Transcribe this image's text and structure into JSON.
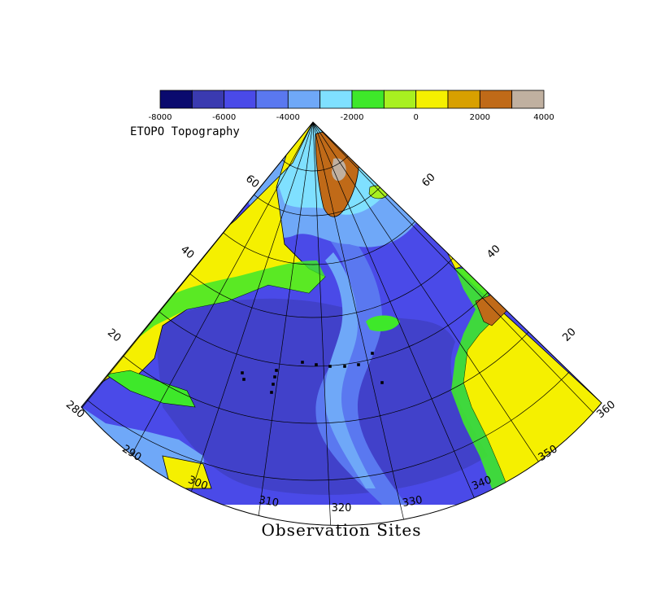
{
  "colorbar": {
    "title": "ETOPO Topography",
    "ticks": [
      "-8000",
      "-6000",
      "-4000",
      "-2000",
      "0",
      "2000",
      "4000"
    ],
    "colors": [
      "#0a0a6e",
      "#3a3ab0",
      "#4a4ae8",
      "#5a78f0",
      "#6fa8f8",
      "#7fe0ff",
      "#3ee82a",
      "#a8f020",
      "#f5f000",
      "#d8a000",
      "#c06a18",
      "#c0b0a0"
    ]
  },
  "map": {
    "title": "Observation Sites",
    "lon_labels": [
      "280",
      "290",
      "300",
      "310",
      "320",
      "330",
      "340",
      "350",
      "360"
    ],
    "lat_labels_left": [
      "20",
      "40",
      "60"
    ],
    "lat_labels_right": [
      "20",
      "40",
      "60"
    ],
    "coast_color": "#000000",
    "ocean_color": "#4a4ae8",
    "land_color": "#f5f000",
    "observation_sites_count": 13
  }
}
